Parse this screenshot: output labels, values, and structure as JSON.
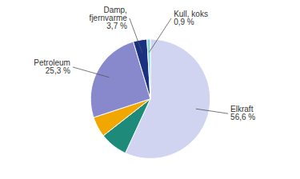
{
  "chart_data": {
    "type": "pie",
    "values": [
      56.6,
      7.5,
      5.5,
      25.3,
      3.7,
      0.9
    ],
    "colors": [
      "#d0d4f0",
      "#1d8a7a",
      "#f0a800",
      "#8888cc",
      "#1a3080",
      "#80d8d8"
    ],
    "value_labels": [
      "Elkraft\n56,6 %",
      null,
      null,
      "Petroleum\n25,3 %",
      "Damp,\nfjernvarme\n3,7 %",
      "Kull, koks\n0,9 %"
    ]
  }
}
